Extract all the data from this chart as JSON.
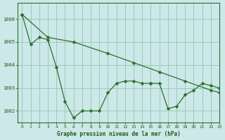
{
  "title": "Graphe pression niveau de la mer (hPa)",
  "background_color": "#cce8e8",
  "grid_color": "#99ccbb",
  "line_color": "#2d6e2d",
  "text_color": "#1a5c1a",
  "xlim": [
    -0.5,
    23
  ],
  "ylim": [
    1001.5,
    1006.7
  ],
  "yticks": [
    1002,
    1003,
    1004,
    1005,
    1006
  ],
  "xticks": [
    0,
    1,
    2,
    3,
    4,
    5,
    6,
    7,
    8,
    9,
    10,
    11,
    12,
    13,
    14,
    15,
    16,
    17,
    18,
    19,
    20,
    21,
    22,
    23
  ],
  "series": [
    {
      "x": [
        0,
        1,
        2,
        3,
        4,
        5,
        6,
        7,
        8,
        9,
        10,
        11,
        12,
        13,
        14,
        15
      ],
      "y": [
        1006.2,
        1004.9,
        1005.2,
        1005.1,
        1003.9,
        1002.4,
        1001.7,
        1002.0,
        1002.0,
        1002.0,
        1002.8,
        1003.2,
        1003.3,
        1003.3,
        1003.2,
        1003.2
      ]
    },
    {
      "x": [
        0,
        3,
        6,
        10,
        13,
        16,
        19,
        22,
        23
      ],
      "y": [
        1006.2,
        1005.2,
        1005.0,
        1004.5,
        1004.1,
        1003.7,
        1003.3,
        1002.9,
        1002.8
      ]
    },
    {
      "x": [
        15,
        16,
        17,
        18,
        19,
        20,
        21,
        22,
        23
      ],
      "y": [
        1003.2,
        1003.2,
        1002.1,
        1002.2,
        1002.7,
        1002.9,
        1003.2,
        1003.1,
        1003.0
      ]
    }
  ]
}
